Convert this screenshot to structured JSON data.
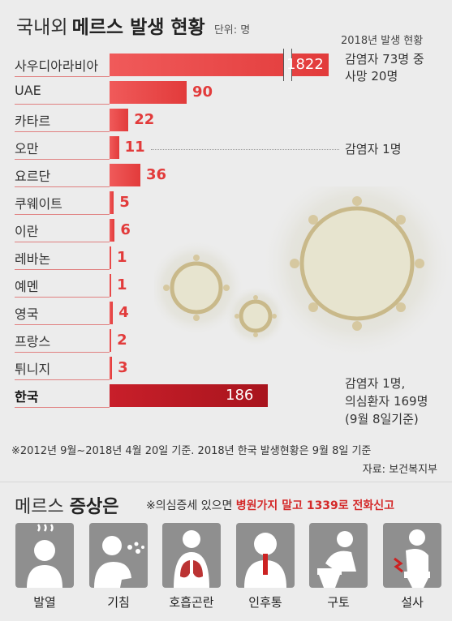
{
  "header": {
    "title_part1": "국내외",
    "title_part2": "메르스 발생 현황",
    "unit": "단위: 명"
  },
  "chart_data": {
    "type": "bar",
    "orientation": "horizontal",
    "categories": [
      "사우디아라비아",
      "UAE",
      "카타르",
      "오만",
      "요르단",
      "쿠웨이트",
      "이란",
      "레바논",
      "예멘",
      "영국",
      "프랑스",
      "튀니지",
      "한국"
    ],
    "values": [
      1822,
      90,
      22,
      11,
      36,
      5,
      6,
      1,
      1,
      4,
      2,
      3,
      186
    ],
    "value_labels": [
      "1822",
      "90",
      "22",
      "11",
      "36",
      "5",
      "6",
      "1",
      "1",
      "4",
      "2",
      "3",
      "186"
    ],
    "highlight": "한국",
    "axis_break": true,
    "colors": {
      "bar": "#e23b3b",
      "highlight": "#b0161f"
    }
  },
  "annotations": {
    "saudi_year": "2018년 발생 현황",
    "saudi_line1": "감염자 73명 중",
    "saudi_line2": "사망 20명",
    "oman": "감염자 1명",
    "korea_line1": "감염자 1명,",
    "korea_line2": "의심환자 169명",
    "korea_line3": "(9월 8일기준)"
  },
  "footnote": "※2012년 9월~2018년 4월 20일 기준. 2018년 한국 발생현황은 9월 8일 기준",
  "source": "자료: 보건복지부",
  "symptoms": {
    "title_normal": "메르스",
    "title_bold": "증상은",
    "note_prefix": "※의심증세 있으면",
    "note_red": "병원가지 말고 1339로 전화신고",
    "items": [
      {
        "label": "발열",
        "icon": "fever-icon"
      },
      {
        "label": "기침",
        "icon": "cough-icon"
      },
      {
        "label": "호흡곤란",
        "icon": "breathing-difficulty-icon"
      },
      {
        "label": "인후통",
        "icon": "sore-throat-icon"
      },
      {
        "label": "구토",
        "icon": "vomit-icon"
      },
      {
        "label": "설사",
        "icon": "diarrhea-icon"
      }
    ]
  }
}
